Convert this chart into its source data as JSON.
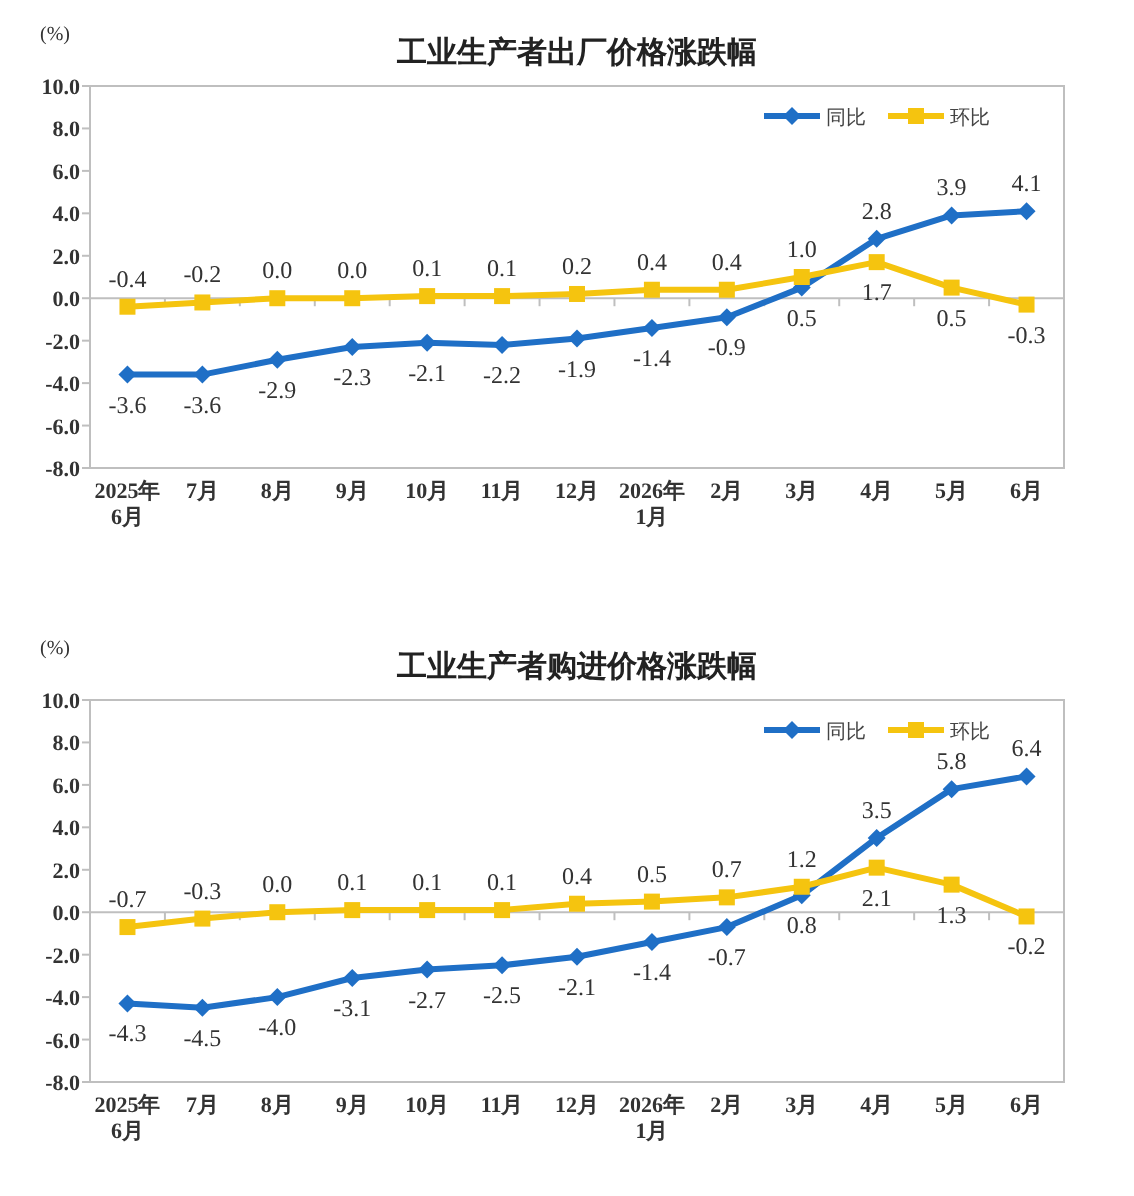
{
  "chart_data": [
    {
      "type": "line",
      "title": "工业生产者出厂价格涨跌幅",
      "ylabel": "(%)",
      "categories": [
        "2025年6月",
        "7月",
        "8月",
        "9月",
        "10月",
        "11月",
        "12月",
        "2026年1月",
        "2月",
        "3月",
        "4月",
        "5月",
        "6月"
      ],
      "series": [
        {
          "name": "同比",
          "color": "#1f6fc6",
          "marker": "diamond",
          "values": [
            -3.6,
            -3.6,
            -2.9,
            -2.3,
            -2.1,
            -2.2,
            -1.9,
            -1.4,
            -0.9,
            0.5,
            2.8,
            3.9,
            4.1
          ],
          "value_labels": [
            "-3.6",
            "-3.6",
            "-2.9",
            "-2.3",
            "-2.1",
            "-2.2",
            "-1.9",
            "-1.4",
            "-0.9",
            "0.5",
            "2.8",
            "3.9",
            "4.1"
          ]
        },
        {
          "name": "环比",
          "color": "#f5c40f",
          "marker": "square",
          "values": [
            -0.4,
            -0.2,
            0.0,
            0.0,
            0.1,
            0.1,
            0.2,
            0.4,
            0.4,
            1.0,
            1.7,
            0.5,
            -0.3
          ],
          "value_labels": [
            "-0.4",
            "-0.2",
            "0.0",
            "0.0",
            "0.1",
            "0.1",
            "0.2",
            "0.4",
            "0.4",
            "1.0",
            "1.7",
            "0.5",
            "-0.3"
          ]
        }
      ],
      "ylim": [
        -8,
        10
      ],
      "yticks": [
        {
          "value": -8,
          "label": "-8.0"
        },
        {
          "value": -6,
          "label": "-6.0"
        },
        {
          "value": -4,
          "label": "-4.0"
        },
        {
          "value": -2,
          "label": "-2.0"
        },
        {
          "value": 0,
          "label": "0.0"
        },
        {
          "value": 2,
          "label": "2.0"
        },
        {
          "value": 4,
          "label": "4.0"
        },
        {
          "value": 6,
          "label": "6.0"
        },
        {
          "value": 8,
          "label": "8.0"
        },
        {
          "value": 10,
          "label": "10.0"
        }
      ],
      "legend": "top right"
    },
    {
      "type": "line",
      "title": "工业生产者购进价格涨跌幅",
      "ylabel": "(%)",
      "categories": [
        "2025年6月",
        "7月",
        "8月",
        "9月",
        "10月",
        "11月",
        "12月",
        "2026年1月",
        "2月",
        "3月",
        "4月",
        "5月",
        "6月"
      ],
      "series": [
        {
          "name": "同比",
          "color": "#1f6fc6",
          "marker": "diamond",
          "values": [
            -4.3,
            -4.5,
            -4.0,
            -3.1,
            -2.7,
            -2.5,
            -2.1,
            -1.4,
            -0.7,
            0.8,
            3.5,
            5.8,
            6.4
          ],
          "value_labels": [
            "-4.3",
            "-4.5",
            "-4.0",
            "-3.1",
            "-2.7",
            "-2.5",
            "-2.1",
            "-1.4",
            "-0.7",
            "0.8",
            "3.5",
            "5.8",
            "6.4"
          ]
        },
        {
          "name": "环比",
          "color": "#f5c40f",
          "marker": "square",
          "values": [
            -0.7,
            -0.3,
            0.0,
            0.1,
            0.1,
            0.1,
            0.4,
            0.5,
            0.7,
            1.2,
            2.1,
            1.3,
            -0.2
          ],
          "value_labels": [
            "-0.7",
            "-0.3",
            "0.0",
            "0.1",
            "0.1",
            "0.1",
            "0.4",
            "0.5",
            "0.7",
            "1.2",
            "2.1",
            "1.3",
            "-0.2"
          ]
        }
      ],
      "ylim": [
        -8,
        10
      ],
      "yticks": [
        {
          "value": -8,
          "label": "-8.0"
        },
        {
          "value": -6,
          "label": "-6.0"
        },
        {
          "value": -4,
          "label": "-4.0"
        },
        {
          "value": -2,
          "label": "-2.0"
        },
        {
          "value": 0,
          "label": "0.0"
        },
        {
          "value": 2,
          "label": "2.0"
        },
        {
          "value": 4,
          "label": "4.0"
        },
        {
          "value": 6,
          "label": "6.0"
        },
        {
          "value": 8,
          "label": "8.0"
        },
        {
          "value": 10,
          "label": "10.0"
        }
      ],
      "legend": "top right"
    }
  ]
}
